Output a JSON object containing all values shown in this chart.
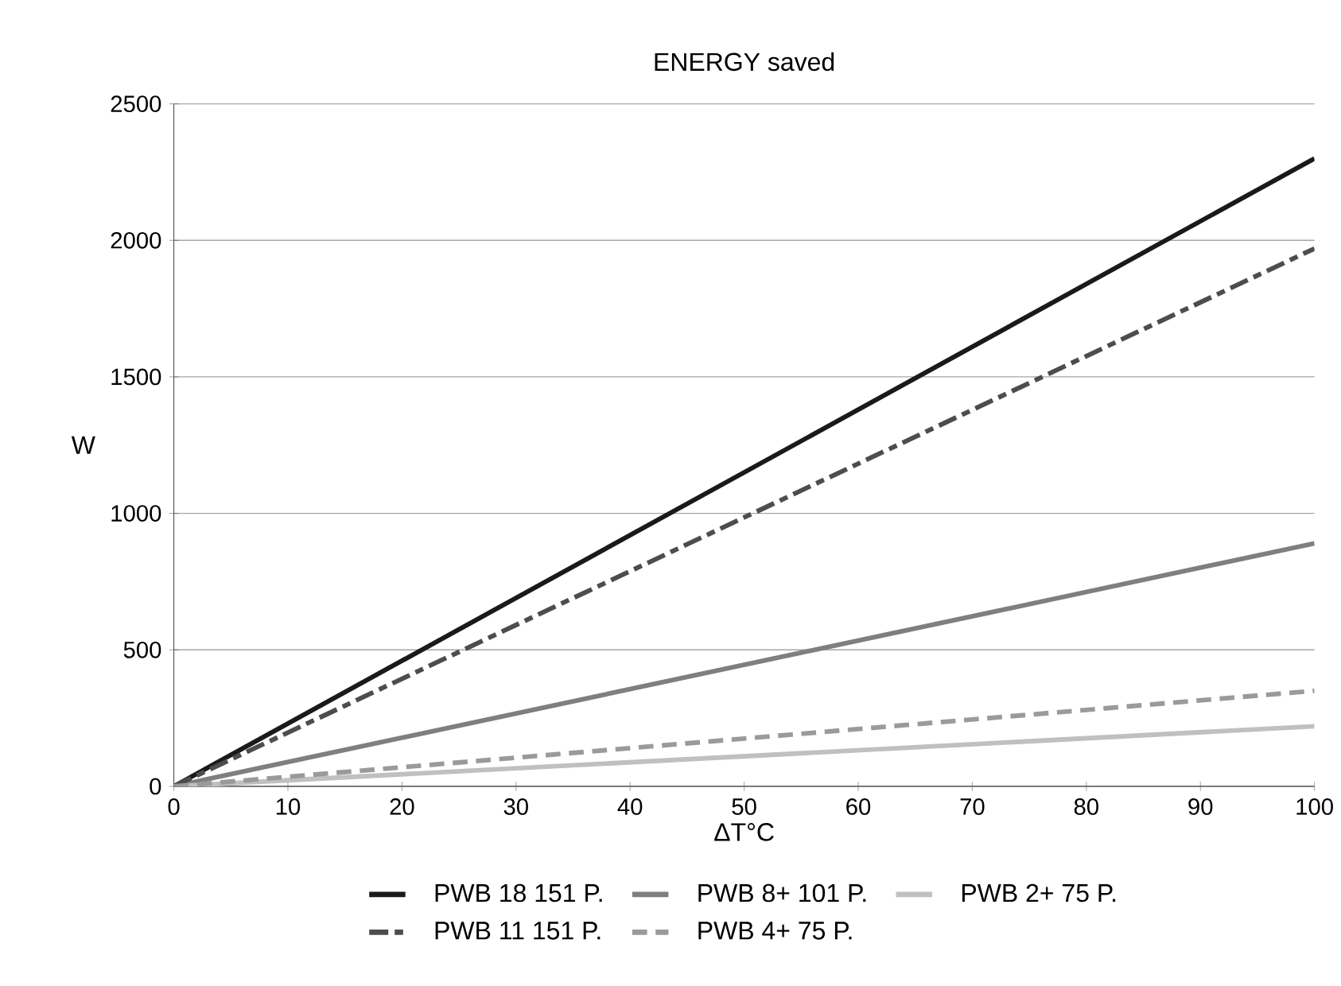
{
  "chart_data": {
    "type": "line",
    "title": "ENERGY saved",
    "xlabel": "ΔT°C",
    "ylabel": "W",
    "xlim": [
      0,
      100
    ],
    "ylim": [
      0,
      2500
    ],
    "xticks": [
      0,
      10,
      20,
      30,
      40,
      50,
      60,
      70,
      80,
      90,
      100
    ],
    "yticks": [
      0,
      500,
      1000,
      1500,
      2000,
      2500
    ],
    "grid": "y",
    "legend": "bottom",
    "x": [
      0,
      100
    ],
    "series": [
      {
        "name": "PWB 18 151 P.",
        "color": "#1a1a1a",
        "values": [
          0,
          2300
        ],
        "line_style": "solid"
      },
      {
        "name": "PWB 8+ 101 P.",
        "color": "#7f7f7f",
        "values": [
          0,
          890
        ],
        "line_style": "solid"
      },
      {
        "name": "PWB 2+ 75 P.",
        "color": "#c0c0c0",
        "values": [
          0,
          220
        ],
        "line_style": "solid"
      },
      {
        "name": "PWB 11 151 P.",
        "color": "#4d4d4d",
        "values": [
          0,
          1970
        ],
        "line_style": "dashdot"
      },
      {
        "name": "PWB 4+ 75 P.",
        "color": "#9a9a9a",
        "values": [
          0,
          350
        ],
        "line_style": "dashed"
      }
    ]
  }
}
